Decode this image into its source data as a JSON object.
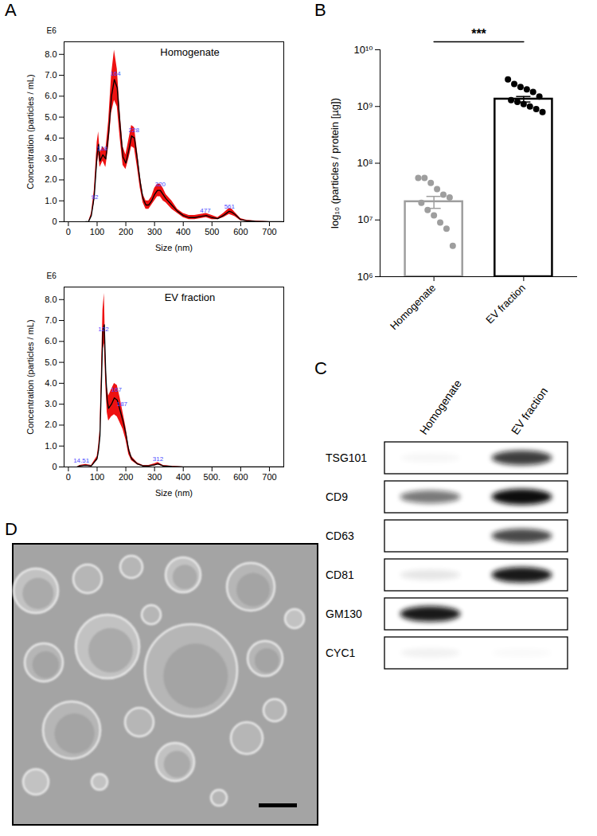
{
  "chart_data": [
    {
      "type": "line",
      "panel": "A",
      "title": "Homogenate",
      "x_label": "Size (nm)",
      "y_label": "Concentration (particles / mL)",
      "y_unit": "E6",
      "xlim": [
        -15,
        750
      ],
      "xticks": [
        0,
        100,
        200,
        300,
        400,
        500,
        600,
        700
      ],
      "ylim": [
        0,
        8.6
      ],
      "yticks": [
        0,
        {
          "value": 1,
          "label": "1.0"
        },
        {
          "value": 2,
          "label": "2.0"
        },
        {
          "value": 3,
          "label": "3.0"
        },
        {
          "value": 4,
          "label": "4.0"
        },
        {
          "value": 5,
          "label": "5.0"
        },
        {
          "value": 6,
          "label": "6.0"
        },
        {
          "value": 7,
          "label": "7.0"
        },
        {
          "value": 8,
          "label": "8.0"
        }
      ],
      "x": [
        60,
        70,
        80,
        90,
        100,
        105,
        110,
        120,
        130,
        140,
        150,
        160,
        170,
        180,
        190,
        200,
        210,
        220,
        230,
        240,
        250,
        260,
        270,
        280,
        290,
        300,
        310,
        320,
        330,
        340,
        360,
        380,
        400,
        420,
        440,
        460,
        480,
        500,
        520,
        540,
        560,
        570,
        580,
        600,
        620,
        650,
        700,
        750
      ],
      "series": [
        {
          "color": "#000000",
          "values": [
            0,
            0,
            0.3,
            1.2,
            3.2,
            3.7,
            2.9,
            3.2,
            3.0,
            4.2,
            6.0,
            6.8,
            6.4,
            4.6,
            3.1,
            2.8,
            3.4,
            4.1,
            4.0,
            3.0,
            1.9,
            1.1,
            0.8,
            0.8,
            1.0,
            1.3,
            1.5,
            1.5,
            1.3,
            1.1,
            0.8,
            0.5,
            0.3,
            0.2,
            0.2,
            0.25,
            0.3,
            0.2,
            0.15,
            0.3,
            0.5,
            0.45,
            0.35,
            0.1,
            0.05,
            0.02,
            0,
            0
          ],
          "lower": [
            0,
            0,
            0.2,
            0.9,
            2.7,
            3.2,
            2.6,
            2.9,
            2.6,
            3.6,
            5.2,
            5.8,
            5.5,
            4.0,
            2.7,
            2.5,
            3.0,
            3.6,
            3.5,
            2.6,
            1.6,
            0.9,
            0.6,
            0.6,
            0.8,
            1.0,
            1.2,
            1.2,
            1.0,
            0.9,
            0.6,
            0.4,
            0.2,
            0.1,
            0.1,
            0.15,
            0.2,
            0.1,
            0.1,
            0.2,
            0.35,
            0.3,
            0.25,
            0.05,
            0.02,
            0,
            0,
            0
          ],
          "upper": [
            0,
            0,
            0.4,
            1.5,
            3.8,
            4.3,
            3.3,
            3.6,
            3.4,
            4.8,
            7.0,
            8.2,
            7.3,
            5.2,
            3.6,
            3.2,
            3.9,
            4.6,
            4.5,
            3.4,
            2.2,
            1.3,
            1.0,
            1.0,
            1.2,
            1.6,
            1.8,
            1.8,
            1.6,
            1.3,
            1.0,
            0.6,
            0.4,
            0.3,
            0.3,
            0.35,
            0.4,
            0.3,
            0.2,
            0.4,
            0.65,
            0.6,
            0.45,
            0.15,
            0.08,
            0.04,
            0,
            0
          ]
        }
      ],
      "annotations": [
        {
          "x": 92,
          "y": 1.0,
          "text": "92"
        },
        {
          "x": 118,
          "y": 3.3,
          "text": "118"
        },
        {
          "x": 164,
          "y": 6.9,
          "text": "164"
        },
        {
          "x": 228,
          "y": 4.2,
          "text": "228"
        },
        {
          "x": 320,
          "y": 1.6,
          "text": "320"
        },
        {
          "x": 477,
          "y": 0.35,
          "text": "477"
        },
        {
          "x": 561,
          "y": 0.55,
          "text": "561"
        }
      ]
    },
    {
      "type": "line",
      "title": "EV fraction",
      "x_label": "Size (nm)",
      "y_label": "Concentration (particles / mL)",
      "y_unit": "E6",
      "xlim": [
        -15,
        750
      ],
      "xticks": [
        0,
        100,
        200,
        300,
        400,
        {
          "value": 500,
          "label": "500."
        },
        600,
        700
      ],
      "ylim": [
        0,
        8.6
      ],
      "yticks": [
        0,
        {
          "value": 1,
          "label": "1.0"
        },
        {
          "value": 2,
          "label": "2.0"
        },
        {
          "value": 3,
          "label": "3.0"
        },
        {
          "value": 4,
          "label": "4.0"
        },
        {
          "value": 5,
          "label": "5.0"
        },
        {
          "value": 6,
          "label": "6.0"
        },
        {
          "value": 7,
          "label": "7.0"
        },
        {
          "value": 8,
          "label": "8.0"
        }
      ],
      "x": [
        30,
        40,
        60,
        80,
        100,
        105,
        110,
        115,
        120,
        125,
        130,
        135,
        140,
        150,
        160,
        170,
        180,
        190,
        200,
        210,
        220,
        240,
        260,
        280,
        300,
        312,
        330,
        360,
        400,
        750
      ],
      "series": [
        {
          "color": "#000000",
          "values": [
            0,
            0.05,
            0.08,
            0.05,
            0.4,
            0.8,
            1.5,
            4.0,
            6.5,
            6.8,
            4.5,
            3.2,
            2.8,
            3.0,
            3.3,
            3.2,
            2.7,
            2.2,
            1.6,
            0.8,
            0.4,
            0.15,
            0.05,
            0.05,
            0.1,
            0.15,
            0.05,
            0.02,
            0,
            0
          ],
          "lower": [
            0,
            0.02,
            0.05,
            0.02,
            0.3,
            0.6,
            1.2,
            3.4,
            5.6,
            5.9,
            3.9,
            2.6,
            2.2,
            2.4,
            2.5,
            2.4,
            2.1,
            1.8,
            1.3,
            0.6,
            0.3,
            0.1,
            0.02,
            0.02,
            0.05,
            0.1,
            0.02,
            0,
            0,
            0
          ],
          "upper": [
            0,
            0.08,
            0.12,
            0.08,
            0.5,
            1.0,
            1.8,
            4.6,
            7.5,
            8.3,
            5.1,
            3.8,
            3.4,
            3.7,
            4.0,
            3.9,
            3.3,
            2.6,
            1.9,
            1.0,
            0.5,
            0.2,
            0.08,
            0.08,
            0.15,
            0.22,
            0.08,
            0.04,
            0,
            0
          ]
        }
      ],
      "annotations": [
        {
          "x": 45,
          "y": 0.1,
          "text": "14.51"
        },
        {
          "x": 122,
          "y": 6.4,
          "text": "122"
        },
        {
          "x": 167,
          "y": 3.5,
          "text": "167"
        },
        {
          "x": 187,
          "y": 2.8,
          "text": "187"
        },
        {
          "x": 312,
          "y": 0.2,
          "text": "312"
        }
      ]
    },
    {
      "type": "bar",
      "panel": "B",
      "y_label": "log₁₀ (particles / protein [µg])",
      "log": "y",
      "ylim": [
        1000000,
        10000000000
      ],
      "yticks": [
        {
          "value": 1000000,
          "label": "10⁶"
        },
        {
          "value": 10000000,
          "label": "10⁷"
        },
        {
          "value": 100000000,
          "label": "10⁸"
        },
        {
          "value": 1000000000,
          "label": "10⁹"
        },
        {
          "value": 10000000000,
          "label": "10¹⁰"
        }
      ],
      "categories": [
        "Homogenate",
        "EV fraction"
      ],
      "values": [
        21000000,
        1350000000
      ],
      "error": [
        5000000,
        150000000
      ],
      "points": [
        [
          55000000,
          55000000,
          45000000,
          35000000,
          28000000,
          25000000,
          20000000,
          15000000,
          12000000,
          9000000,
          7000000,
          3500000
        ],
        [
          3000000000,
          2500000000,
          2200000000,
          2000000000,
          1800000000,
          1500000000,
          1300000000,
          1200000000,
          1100000000,
          1000000000,
          900000000,
          800000000
        ]
      ],
      "colors": [
        "#9e9e9e",
        "#000000"
      ],
      "significance": "***"
    }
  ],
  "blot": {
    "panel": "C",
    "columns": [
      "Homogenate",
      "EV fraction"
    ],
    "rows": [
      {
        "label": "TSG101",
        "intensity": [
          0.03,
          0.8
        ]
      },
      {
        "label": "CD9",
        "intensity": [
          0.55,
          1
        ]
      },
      {
        "label": "CD63",
        "intensity": [
          0,
          0.75
        ]
      },
      {
        "label": "CD81",
        "intensity": [
          0.1,
          0.95
        ]
      },
      {
        "label": "GM130",
        "intensity": [
          0.95,
          0
        ]
      },
      {
        "label": "CYC1",
        "intensity": [
          0.05,
          0.02
        ]
      }
    ]
  },
  "micrograph": {
    "panel": "D"
  }
}
